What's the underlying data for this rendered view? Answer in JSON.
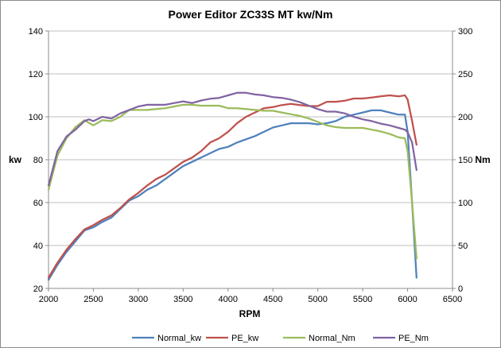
{
  "chart_data": {
    "type": "line",
    "title": "Power Editor ZC33S MT kw/Nm",
    "xlabel": "RPM",
    "ylabel": "kw",
    "y2label": "Nm",
    "xlim": [
      2000,
      6500
    ],
    "ylim": [
      20,
      140
    ],
    "y2lim": [
      0,
      300
    ],
    "x_ticks": [
      2000,
      2500,
      3000,
      3500,
      4000,
      4500,
      5000,
      5500,
      6000,
      6500
    ],
    "y_ticks": [
      20,
      40,
      60,
      80,
      100,
      120,
      140
    ],
    "y2_ticks": [
      0,
      50,
      100,
      150,
      200,
      250,
      300
    ],
    "grid": "horizontal",
    "legend_position": "bottom",
    "series": [
      {
        "name": "Normal_kw",
        "axis": "left",
        "color": "#4f81bd",
        "x": [
          2000,
          2100,
          2200,
          2300,
          2400,
          2500,
          2600,
          2700,
          2800,
          2900,
          3000,
          3100,
          3200,
          3300,
          3400,
          3500,
          3600,
          3700,
          3800,
          3900,
          4000,
          4100,
          4200,
          4300,
          4400,
          4500,
          4600,
          4700,
          4800,
          4900,
          5000,
          5100,
          5200,
          5300,
          5400,
          5500,
          5600,
          5700,
          5800,
          5900,
          5970,
          6000,
          6050,
          6100
        ],
        "y": [
          24,
          31,
          37,
          42,
          47,
          48.5,
          51,
          53,
          57,
          61,
          63,
          66,
          68,
          71,
          74,
          77,
          79,
          81,
          83,
          85,
          86,
          88,
          89.5,
          91,
          93,
          95,
          96,
          97,
          97,
          97,
          96.5,
          97,
          98,
          100,
          101,
          102,
          103,
          103,
          102,
          101,
          101,
          93,
          60,
          25
        ]
      },
      {
        "name": "PE_kw",
        "axis": "left",
        "color": "#c0504d",
        "x": [
          2000,
          2100,
          2200,
          2300,
          2400,
          2500,
          2600,
          2700,
          2800,
          2900,
          3000,
          3100,
          3200,
          3300,
          3400,
          3500,
          3600,
          3700,
          3800,
          3900,
          4000,
          4100,
          4200,
          4300,
          4400,
          4500,
          4600,
          4700,
          4800,
          4900,
          5000,
          5100,
          5200,
          5300,
          5400,
          5500,
          5600,
          5700,
          5800,
          5900,
          5970,
          6000,
          6050,
          6100
        ],
        "y": [
          25,
          32,
          38,
          43,
          47.5,
          49.5,
          52,
          54,
          57.5,
          61.5,
          64.5,
          68,
          71,
          73,
          76,
          79,
          81,
          84,
          88,
          90,
          93,
          97,
          100,
          102,
          104,
          104.5,
          105.5,
          106,
          105.5,
          105,
          105,
          107,
          107,
          107.5,
          108.5,
          108.5,
          109,
          109.5,
          110,
          109.5,
          110,
          108,
          98,
          87
        ]
      },
      {
        "name": "Normal_Nm",
        "axis": "right",
        "color": "#9bbb59",
        "x": [
          2000,
          2100,
          2200,
          2300,
          2400,
          2450,
          2500,
          2600,
          2700,
          2800,
          2900,
          3000,
          3100,
          3200,
          3300,
          3400,
          3500,
          3600,
          3700,
          3800,
          3900,
          4000,
          4100,
          4200,
          4300,
          4400,
          4500,
          4600,
          4700,
          4800,
          4900,
          5000,
          5100,
          5200,
          5300,
          5400,
          5500,
          5600,
          5700,
          5800,
          5900,
          5970,
          6000,
          6050,
          6100
        ],
        "y": [
          115,
          155,
          175,
          188,
          196,
          193,
          190,
          196,
          195,
          200,
          208,
          208,
          208,
          209,
          210,
          212,
          214,
          214,
          213,
          213,
          213,
          210,
          210,
          209,
          208,
          207,
          207,
          205,
          203,
          201,
          198,
          194,
          190,
          188,
          187,
          187,
          187,
          185,
          183,
          180,
          176,
          175,
          160,
          100,
          35
        ]
      },
      {
        "name": "PE_Nm",
        "axis": "right",
        "color": "#8064a2",
        "x": [
          2000,
          2100,
          2200,
          2300,
          2400,
          2450,
          2500,
          2600,
          2700,
          2800,
          2900,
          3000,
          3100,
          3200,
          3300,
          3400,
          3500,
          3600,
          3700,
          3800,
          3900,
          4000,
          4100,
          4200,
          4300,
          4400,
          4500,
          4600,
          4700,
          4800,
          4900,
          5000,
          5100,
          5200,
          5300,
          5400,
          5500,
          5600,
          5700,
          5800,
          5900,
          5970,
          6000,
          6050,
          6100
        ],
        "y": [
          120,
          160,
          177,
          185,
          195,
          197,
          195,
          200,
          198,
          204,
          208,
          212,
          214,
          214,
          214,
          216,
          218,
          216,
          219,
          221,
          222,
          225,
          228,
          228,
          226,
          225,
          223,
          222,
          220,
          217,
          213,
          209,
          206,
          206,
          204,
          200,
          197,
          195,
          192,
          190,
          187,
          185,
          182,
          170,
          138
        ]
      }
    ]
  }
}
